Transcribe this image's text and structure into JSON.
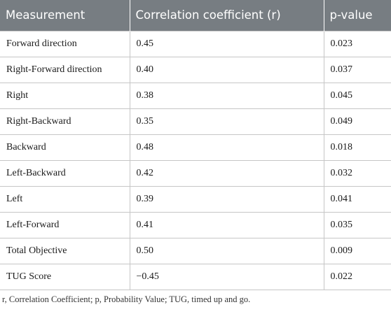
{
  "table": {
    "headers": [
      "Measurement",
      "Correlation coefficient (r)",
      "p-value"
    ],
    "rows": [
      [
        "Forward direction",
        "0.45",
        "0.023"
      ],
      [
        "Right-Forward direction",
        "0.40",
        "0.037"
      ],
      [
        "Right",
        "0.38",
        "0.045"
      ],
      [
        "Right-Backward",
        "0.35",
        "0.049"
      ],
      [
        "Backward",
        "0.48",
        "0.018"
      ],
      [
        "Left-Backward",
        "0.42",
        "0.032"
      ],
      [
        "Left",
        "0.39",
        "0.041"
      ],
      [
        "Left-Forward",
        "0.41",
        "0.035"
      ],
      [
        "Total Objective",
        "0.50",
        "0.009"
      ],
      [
        "TUG Score",
        "−0.45",
        "0.022"
      ]
    ]
  },
  "footnote": "r, Correlation Coefficient; p, Probability Value; TUG, timed up and go.",
  "colors": {
    "header_background": "#777d82",
    "header_text": "#ffffff",
    "grid_line": "#c6c6c6"
  }
}
